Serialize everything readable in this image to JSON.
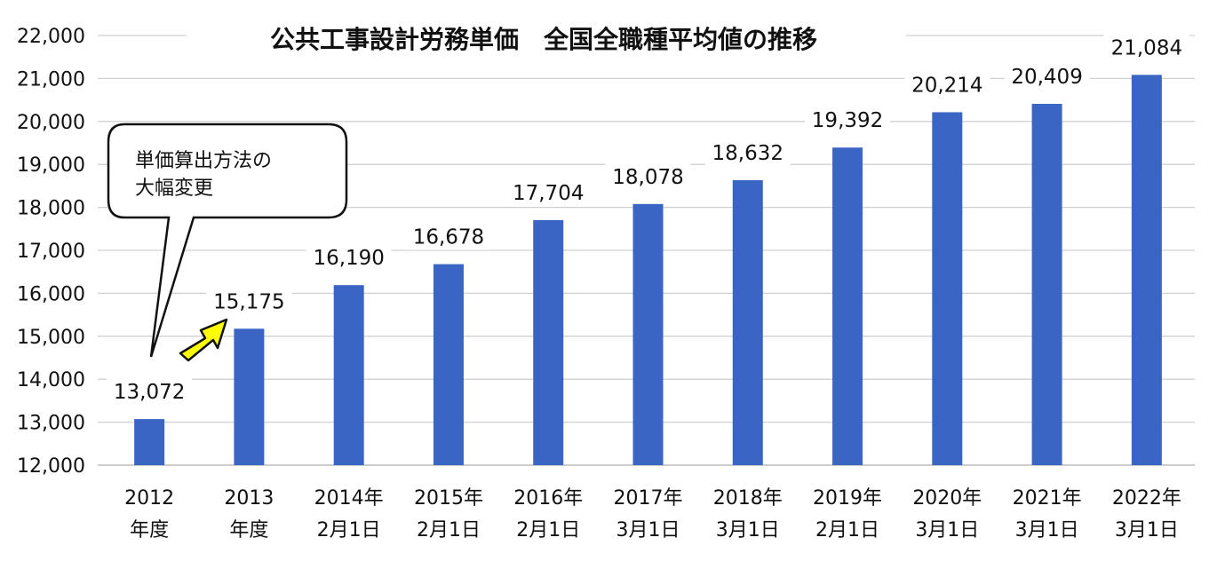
{
  "chart_data": {
    "type": "bar",
    "title": "公共工事設計労務単価　全国全職種平均値の推移",
    "categories": [
      [
        "2012",
        "年度"
      ],
      [
        "2013",
        "年度"
      ],
      [
        "2014年",
        "2月1日"
      ],
      [
        "2015年",
        "2月1日"
      ],
      [
        "2016年",
        "2月1日"
      ],
      [
        "2017年",
        "3月1日"
      ],
      [
        "2018年",
        "3月1日"
      ],
      [
        "2019年",
        "2月1日"
      ],
      [
        "2020年",
        "3月1日"
      ],
      [
        "2021年",
        "3月1日"
      ],
      [
        "2022年",
        "3月1日"
      ]
    ],
    "values": [
      13072,
      15175,
      16190,
      16678,
      17704,
      18078,
      18632,
      19392,
      20214,
      20409,
      21084
    ],
    "value_labels": [
      "13,072",
      "15,175",
      "16,190",
      "16,678",
      "17,704",
      "18,078",
      "18,632",
      "19,392",
      "20,214",
      "20,409",
      "21,084"
    ],
    "ylim": [
      12000,
      22000
    ],
    "yticks": [
      12000,
      13000,
      14000,
      15000,
      16000,
      17000,
      18000,
      19000,
      20000,
      21000,
      22000
    ],
    "ytick_labels": [
      "12,000",
      "13,000",
      "14,000",
      "15,000",
      "16,000",
      "17,000",
      "18,000",
      "19,000",
      "20,000",
      "21,000",
      "22,000"
    ],
    "grid": true,
    "bar_color": "#3a65c4",
    "callout": {
      "lines": [
        "単価算出方法の",
        "大幅変更"
      ]
    },
    "arrow_color": "#ffff00"
  }
}
